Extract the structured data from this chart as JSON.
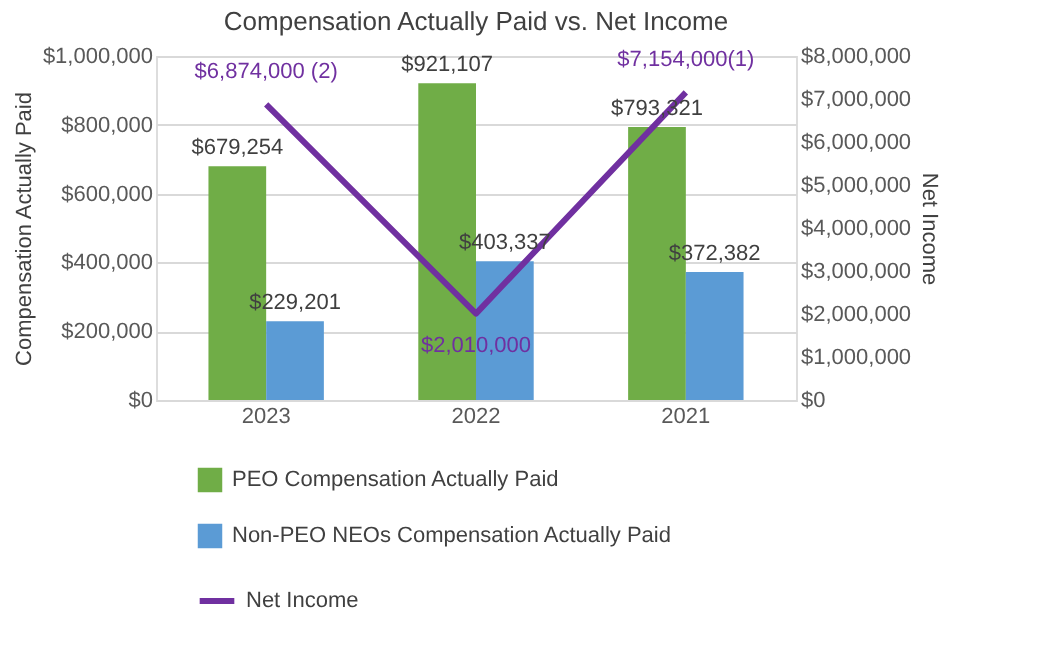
{
  "chart_data": {
    "type": "bar",
    "title": "Compensation Actually Paid vs. Net Income",
    "ylabel": "Compensation Actually Paid",
    "y2label": "Net Income",
    "categories": [
      "2023",
      "2022",
      "2021"
    ],
    "series": [
      {
        "name": "PEO Compensation Actually Paid",
        "color": "#70ad47",
        "values": [
          679254,
          921107,
          793321
        ],
        "value_labels": [
          "$679,254",
          "$921,107",
          "$793,321"
        ]
      },
      {
        "name": "Non-PEO NEOs Compensation Actually Paid",
        "color": "#5b9bd5",
        "values": [
          229201,
          403337,
          372382
        ],
        "value_labels": [
          "$229,201",
          "$403,337",
          "$372,382"
        ]
      },
      {
        "name": "Net Income",
        "type": "line",
        "axis": "y2",
        "line_style": "solid",
        "color": "#7030a0",
        "values": [
          6874000,
          2010000,
          7154000
        ],
        "value_labels": [
          "$6,874,000 (2)",
          "$2,010,000",
          "$7,154,000(1)"
        ]
      }
    ],
    "ylim": [
      0,
      1000000
    ],
    "yticks": [
      {
        "value": 0,
        "label": "$0"
      },
      {
        "value": 200000,
        "label": "$200,000"
      },
      {
        "value": 400000,
        "label": "$400,000"
      },
      {
        "value": 600000,
        "label": "$600,000"
      },
      {
        "value": 800000,
        "label": "$800,000"
      },
      {
        "value": 1000000,
        "label": "$1,000,000"
      }
    ],
    "y2lim": [
      0,
      8000000
    ],
    "y2ticks": [
      {
        "value": 0,
        "label": "$0"
      },
      {
        "value": 1000000,
        "label": "$1,000,000"
      },
      {
        "value": 2000000,
        "label": "$2,000,000"
      },
      {
        "value": 3000000,
        "label": "$3,000,000"
      },
      {
        "value": 4000000,
        "label": "$4,000,000"
      },
      {
        "value": 5000000,
        "label": "$5,000,000"
      },
      {
        "value": 6000000,
        "label": "$6,000,000"
      },
      {
        "value": 7000000,
        "label": "$7,000,000"
      },
      {
        "value": 8000000,
        "label": "$8,000,000"
      }
    ],
    "grid": "y",
    "legend": "bottom"
  }
}
